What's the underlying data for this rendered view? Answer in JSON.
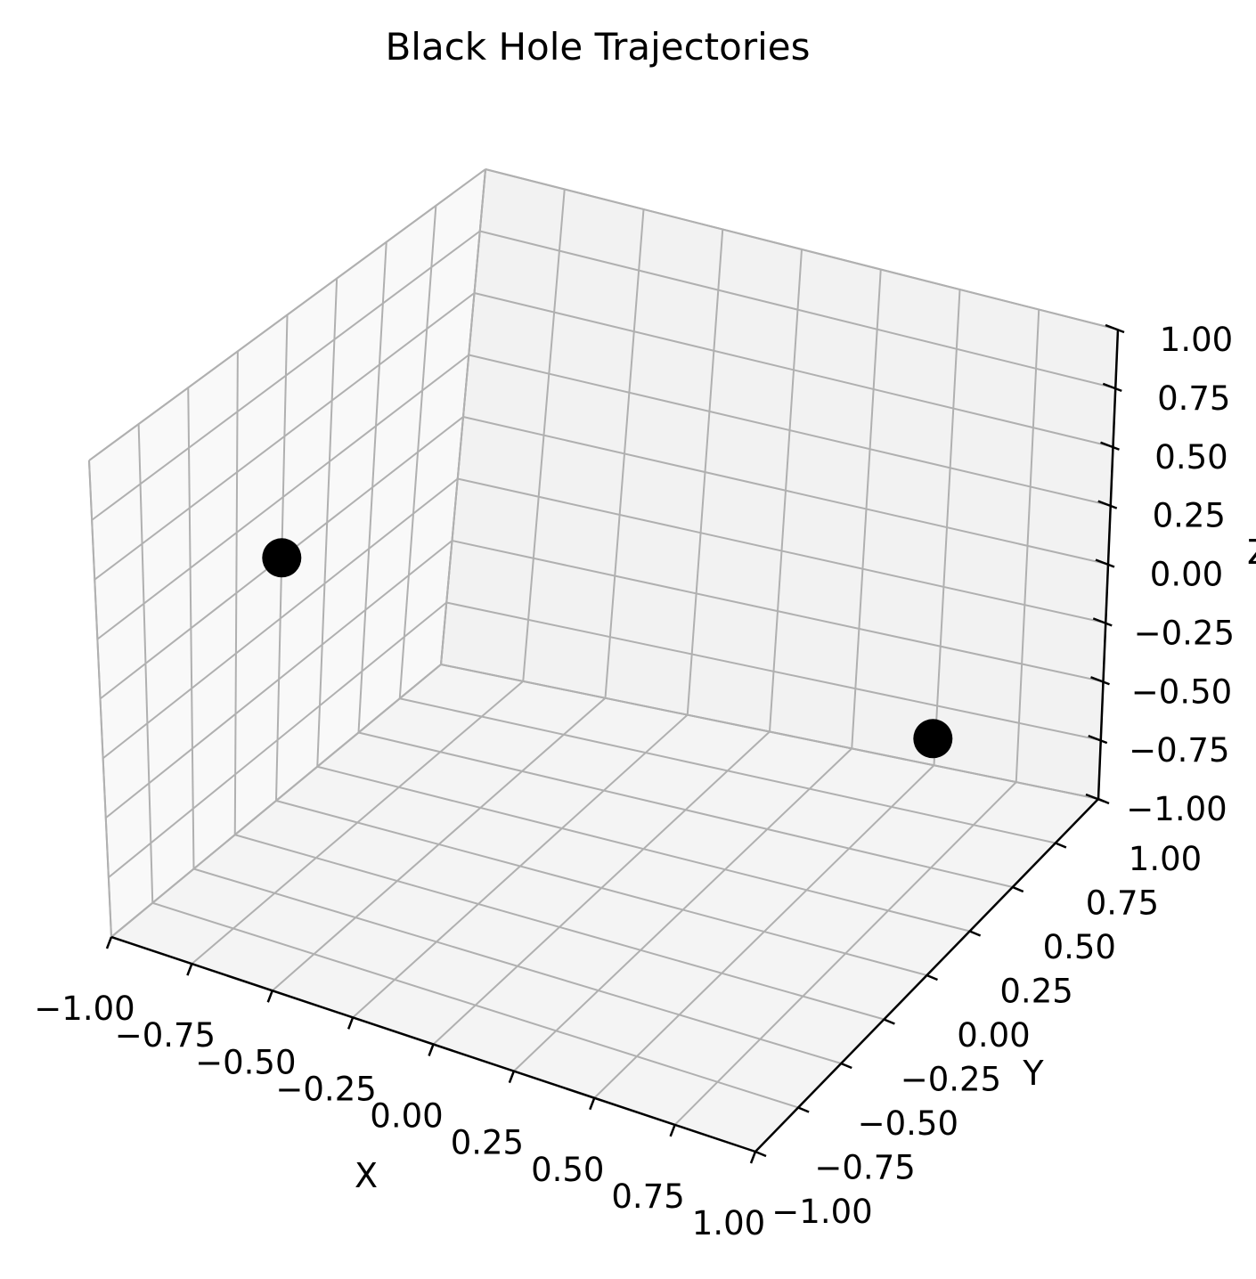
{
  "chart_data": {
    "type": "scatter",
    "projection": "3d",
    "title": "Black Hole Trajectories",
    "xlabel": "X",
    "ylabel": "Y",
    "zlabel": "Z",
    "xlim": [
      -1,
      1
    ],
    "ylim": [
      -1,
      1
    ],
    "zlim": [
      -1,
      1
    ],
    "grid": true,
    "xticks": [
      "−1.00",
      "−0.75",
      "−0.50",
      "−0.25",
      "0.00",
      "0.25",
      "0.50",
      "0.75",
      "1.00"
    ],
    "yticks": [
      "−1.00",
      "−0.75",
      "−0.50",
      "−0.25",
      "0.00",
      "0.25",
      "0.50",
      "0.75",
      "1.00"
    ],
    "zticks": [
      "−1.00",
      "−0.75",
      "−0.50",
      "−0.25",
      "0.00",
      "0.25",
      "0.50",
      "0.75",
      "1.00"
    ],
    "points": [
      {
        "x": -1,
        "y": 0,
        "z": 0
      },
      {
        "x": 1,
        "y": 0,
        "z": 0
      }
    ],
    "marker_color": "#000000",
    "pane_colors": {
      "left": "#f9f9f9",
      "back": "#f2f2f2",
      "floor": "#f4f4f4"
    },
    "grid_color": "#b0b0b0"
  }
}
